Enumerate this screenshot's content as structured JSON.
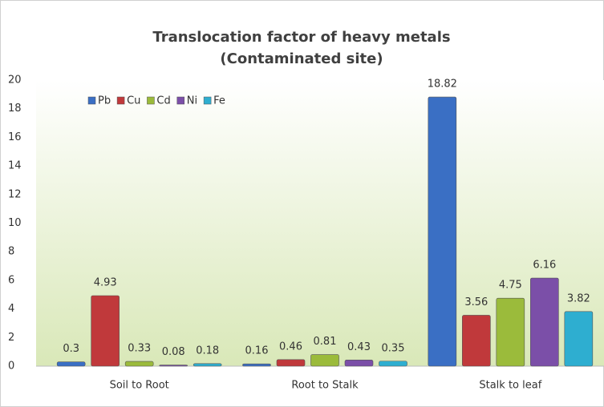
{
  "chart_data": {
    "type": "bar",
    "title": "Translocation factor of heavy metals",
    "subtitle": "(Contaminated site)",
    "categories": [
      "Soil to Root",
      "Root to Stalk",
      "Stalk to leaf"
    ],
    "series": [
      {
        "name": "Pb",
        "color": "#3a6fc4",
        "values": [
          0.3,
          0.16,
          18.82
        ]
      },
      {
        "name": "Cu",
        "color": "#c0393b",
        "values": [
          4.93,
          0.46,
          3.56
        ]
      },
      {
        "name": "Cd",
        "color": "#9bbb3b",
        "values": [
          0.33,
          0.81,
          4.75
        ]
      },
      {
        "name": "Ni",
        "color": "#7b4fa8",
        "values": [
          0.08,
          0.43,
          6.16
        ]
      },
      {
        "name": "Fe",
        "color": "#2eaed0",
        "values": [
          0.18,
          0.35,
          3.82
        ]
      }
    ],
    "ylim": [
      0,
      20
    ],
    "yticks": [
      0,
      2,
      4,
      6,
      8,
      10,
      12,
      14,
      16,
      18,
      20
    ],
    "grid": false,
    "legend": "top-left"
  }
}
